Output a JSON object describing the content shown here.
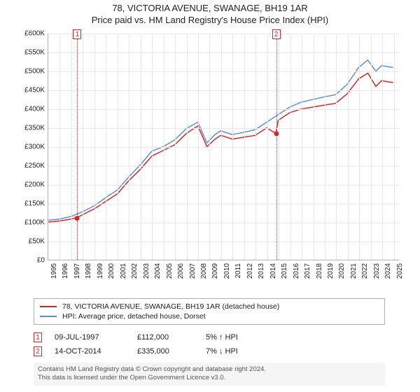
{
  "title": {
    "main": "78, VICTORIA AVENUE, SWANAGE, BH19 1AR",
    "sub": "Price paid vs. HM Land Registry's House Price Index (HPI)"
  },
  "chart": {
    "type": "line",
    "background_color": "#ffffff",
    "grid_color": "#e8e8e8",
    "axis_color": "#b0b0b0",
    "tick_fontsize": 10,
    "y": {
      "min": 0,
      "max": 600000,
      "ticks": [
        0,
        50000,
        100000,
        150000,
        200000,
        250000,
        300000,
        350000,
        400000,
        450000,
        500000,
        550000,
        600000
      ],
      "labels": [
        "£0",
        "£50K",
        "£100K",
        "£150K",
        "£200K",
        "£250K",
        "£300K",
        "£350K",
        "£400K",
        "£450K",
        "£500K",
        "£550K",
        "£600K"
      ]
    },
    "x": {
      "min": 1995,
      "max": 2025.5,
      "ticks": [
        1995,
        1996,
        1997,
        1998,
        1999,
        2000,
        2001,
        2002,
        2003,
        2004,
        2005,
        2006,
        2007,
        2008,
        2009,
        2010,
        2011,
        2012,
        2013,
        2014,
        2015,
        2016,
        2017,
        2018,
        2019,
        2020,
        2021,
        2022,
        2023,
        2024,
        2025
      ],
      "labels": [
        "1995",
        "1996",
        "1997",
        "1998",
        "1999",
        "2000",
        "2001",
        "2002",
        "2003",
        "2004",
        "2005",
        "2006",
        "2007",
        "2008",
        "2009",
        "2010",
        "2011",
        "2012",
        "2013",
        "2014",
        "2015",
        "2016",
        "2017",
        "2018",
        "2019",
        "2020",
        "2021",
        "2022",
        "2023",
        "2024",
        "2025"
      ]
    },
    "series": [
      {
        "id": "property",
        "label": "78, VICTORIA AVENUE, SWANAGE, BH19 1AR (detached house)",
        "color": "#d62728",
        "line_width": 1.5,
        "data": [
          [
            1995,
            100000
          ],
          [
            1996,
            103000
          ],
          [
            1997,
            108000
          ],
          [
            1997.52,
            112000
          ],
          [
            1998,
            120000
          ],
          [
            1999,
            135000
          ],
          [
            2000,
            155000
          ],
          [
            2001,
            175000
          ],
          [
            2002,
            210000
          ],
          [
            2003,
            240000
          ],
          [
            2004,
            275000
          ],
          [
            2005,
            290000
          ],
          [
            2006,
            305000
          ],
          [
            2007,
            335000
          ],
          [
            2008,
            355000
          ],
          [
            2008.8,
            300000
          ],
          [
            2009.5,
            320000
          ],
          [
            2010,
            330000
          ],
          [
            2011,
            320000
          ],
          [
            2012,
            325000
          ],
          [
            2013,
            330000
          ],
          [
            2014,
            350000
          ],
          [
            2014.78,
            335000
          ],
          [
            2015,
            370000
          ],
          [
            2016,
            390000
          ],
          [
            2017,
            400000
          ],
          [
            2018,
            405000
          ],
          [
            2019,
            410000
          ],
          [
            2020,
            415000
          ],
          [
            2021,
            440000
          ],
          [
            2022,
            480000
          ],
          [
            2022.8,
            495000
          ],
          [
            2023.5,
            460000
          ],
          [
            2024,
            475000
          ],
          [
            2025,
            470000
          ]
        ]
      },
      {
        "id": "hpi",
        "label": "HPI: Average price, detached house, Dorset",
        "color": "#5b8fd6",
        "line_width": 1.5,
        "data": [
          [
            1995,
            105000
          ],
          [
            1996,
            108000
          ],
          [
            1997,
            115000
          ],
          [
            1998,
            128000
          ],
          [
            1999,
            143000
          ],
          [
            2000,
            165000
          ],
          [
            2001,
            185000
          ],
          [
            2002,
            220000
          ],
          [
            2003,
            252000
          ],
          [
            2004,
            288000
          ],
          [
            2005,
            300000
          ],
          [
            2006,
            318000
          ],
          [
            2007,
            348000
          ],
          [
            2008,
            365000
          ],
          [
            2008.8,
            310000
          ],
          [
            2009.5,
            332000
          ],
          [
            2010,
            342000
          ],
          [
            2011,
            332000
          ],
          [
            2012,
            338000
          ],
          [
            2013,
            345000
          ],
          [
            2014,
            365000
          ],
          [
            2015,
            385000
          ],
          [
            2016,
            405000
          ],
          [
            2017,
            418000
          ],
          [
            2018,
            425000
          ],
          [
            2019,
            432000
          ],
          [
            2020,
            438000
          ],
          [
            2021,
            465000
          ],
          [
            2022,
            510000
          ],
          [
            2022.8,
            530000
          ],
          [
            2023.5,
            500000
          ],
          [
            2024,
            515000
          ],
          [
            2025,
            510000
          ]
        ]
      }
    ],
    "events": [
      {
        "n": "1",
        "date": "09-JUL-1997",
        "x": 1997.52,
        "price": "£112,000",
        "price_val": 112000,
        "delta": "5% ↑ HPI",
        "color": "#d62728",
        "point_color": "#d62728"
      },
      {
        "n": "2",
        "date": "14-OCT-2014",
        "x": 2014.78,
        "price": "£335,000",
        "price_val": 335000,
        "delta": "7% ↓ HPI",
        "color": "#d62728",
        "point_color": "#d62728"
      }
    ]
  },
  "footer": {
    "line1": "Contains HM Land Registry data © Crown copyright and database right 2024.",
    "line2": "This data is licensed under the Open Government Licence v3.0."
  }
}
